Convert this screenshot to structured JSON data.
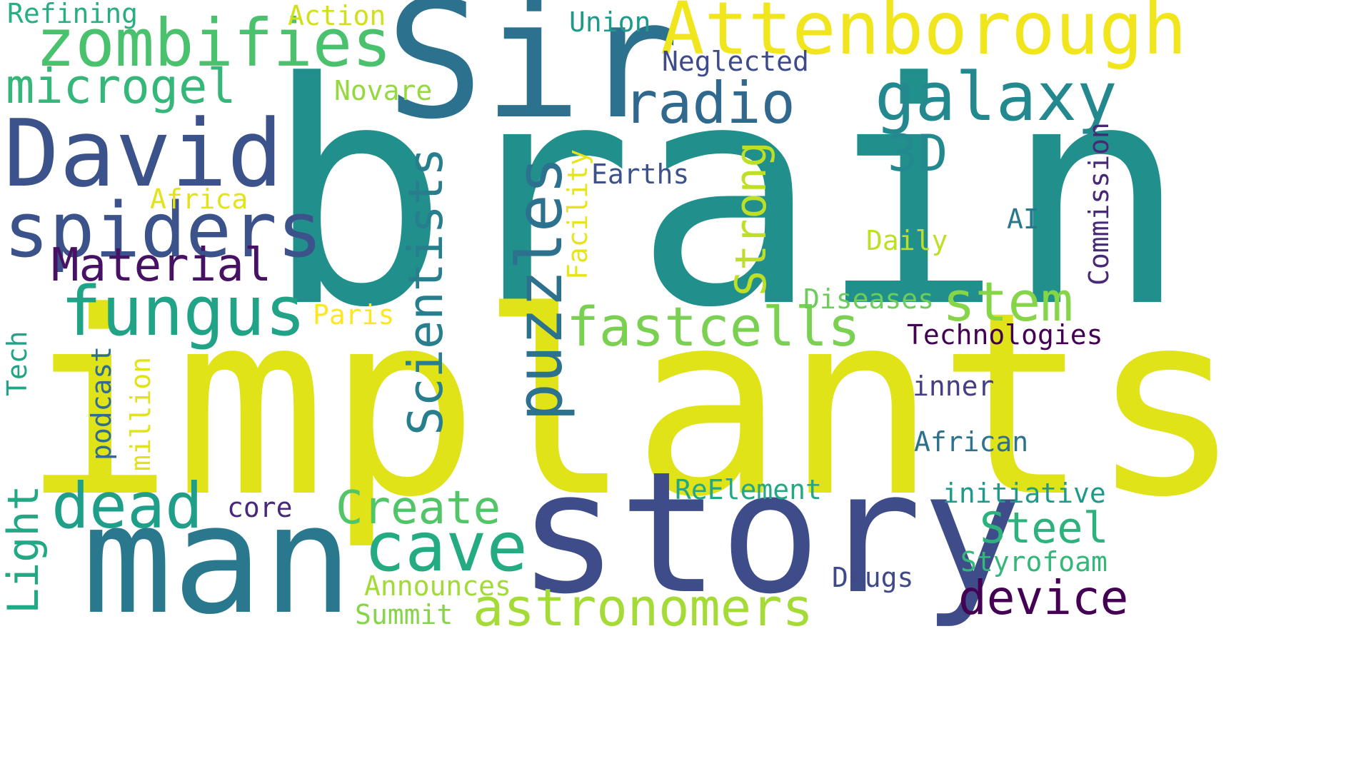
{
  "words": [
    {
      "text": "brain",
      "color": "#21908c",
      "vertical": false
    },
    {
      "text": "implants",
      "color": "#dfe318",
      "vertical": false
    },
    {
      "text": "story",
      "color": "#3e4c8a",
      "vertical": false
    },
    {
      "text": "Sir",
      "color": "#2c728e",
      "vertical": false
    },
    {
      "text": "man",
      "color": "#2a788e",
      "vertical": false
    },
    {
      "text": "Attenborough",
      "color": "#f1e51d",
      "vertical": false
    },
    {
      "text": "David",
      "color": "#3b528b",
      "vertical": false
    },
    {
      "text": "zombifies",
      "color": "#4ac16d",
      "vertical": false
    },
    {
      "text": "spiders",
      "color": "#3b528b",
      "vertical": false
    },
    {
      "text": "galaxy",
      "color": "#23898e",
      "vertical": false
    },
    {
      "text": "radio",
      "color": "#31688e",
      "vertical": false
    },
    {
      "text": "microgel",
      "color": "#35b779",
      "vertical": false
    },
    {
      "text": "fungus",
      "color": "#20a386",
      "vertical": false
    },
    {
      "text": "puzzles",
      "color": "#2c728e",
      "vertical": true
    },
    {
      "text": "fastcells",
      "color": "#7ad151",
      "vertical": false
    },
    {
      "text": "dead",
      "color": "#1f9e89",
      "vertical": false
    },
    {
      "text": "cave",
      "color": "#25ab82",
      "vertical": false
    },
    {
      "text": "Material",
      "color": "#471164",
      "vertical": false
    },
    {
      "text": "Scientists",
      "color": "#277f8e",
      "vertical": true
    },
    {
      "text": "stem",
      "color": "#86d549",
      "vertical": false
    },
    {
      "text": "astronomers",
      "color": "#a5db36",
      "vertical": false
    },
    {
      "text": "Steel",
      "color": "#2db27d",
      "vertical": false
    },
    {
      "text": "device",
      "color": "#440154",
      "vertical": false
    },
    {
      "text": "Create",
      "color": "#52c569",
      "vertical": false
    },
    {
      "text": "3D",
      "color": "#23898e",
      "vertical": false
    },
    {
      "text": "Strong",
      "color": "#bddf26",
      "vertical": true
    },
    {
      "text": "Light",
      "color": "#22a884",
      "vertical": true
    },
    {
      "text": "Refining",
      "color": "#29af7f",
      "vertical": false
    },
    {
      "text": "Action",
      "color": "#d0e11c",
      "vertical": false
    },
    {
      "text": "Union",
      "color": "#1f9a8a",
      "vertical": false
    },
    {
      "text": "Neglected",
      "color": "#3e4a89",
      "vertical": false
    },
    {
      "text": "Novare",
      "color": "#95d840",
      "vertical": false
    },
    {
      "text": "Earths",
      "color": "#3b528b",
      "vertical": false
    },
    {
      "text": "Facility",
      "color": "#e7e419",
      "vertical": true
    },
    {
      "text": "Africa",
      "color": "#e2e418",
      "vertical": false
    },
    {
      "text": "AI",
      "color": "#2a788e",
      "vertical": false
    },
    {
      "text": "Daily",
      "color": "#bddf26",
      "vertical": false
    },
    {
      "text": "Commission",
      "color": "#482878",
      "vertical": true
    },
    {
      "text": "Diseases",
      "color": "#6ccd5a",
      "vertical": false
    },
    {
      "text": "Paris",
      "color": "#fde725",
      "vertical": false
    },
    {
      "text": "Technologies",
      "color": "#440154",
      "vertical": false
    },
    {
      "text": "Tech",
      "color": "#20a386",
      "vertical": true
    },
    {
      "text": "podcast",
      "color": "#2f6c8e",
      "vertical": true
    },
    {
      "text": "million",
      "color": "#dfe318",
      "vertical": true
    },
    {
      "text": "inner",
      "color": "#433e85",
      "vertical": false
    },
    {
      "text": "African",
      "color": "#2c728e",
      "vertical": false
    },
    {
      "text": "ReElement",
      "color": "#22a884",
      "vertical": false
    },
    {
      "text": "initiative",
      "color": "#1f9a8a",
      "vertical": false
    },
    {
      "text": "core",
      "color": "#482878",
      "vertical": false
    },
    {
      "text": "Styrofoam",
      "color": "#35b779",
      "vertical": false
    },
    {
      "text": "Drugs",
      "color": "#3e4a89",
      "vertical": false
    },
    {
      "text": "Announces",
      "color": "#a2da37",
      "vertical": false
    },
    {
      "text": "Summit",
      "color": "#86d549",
      "vertical": false
    }
  ]
}
